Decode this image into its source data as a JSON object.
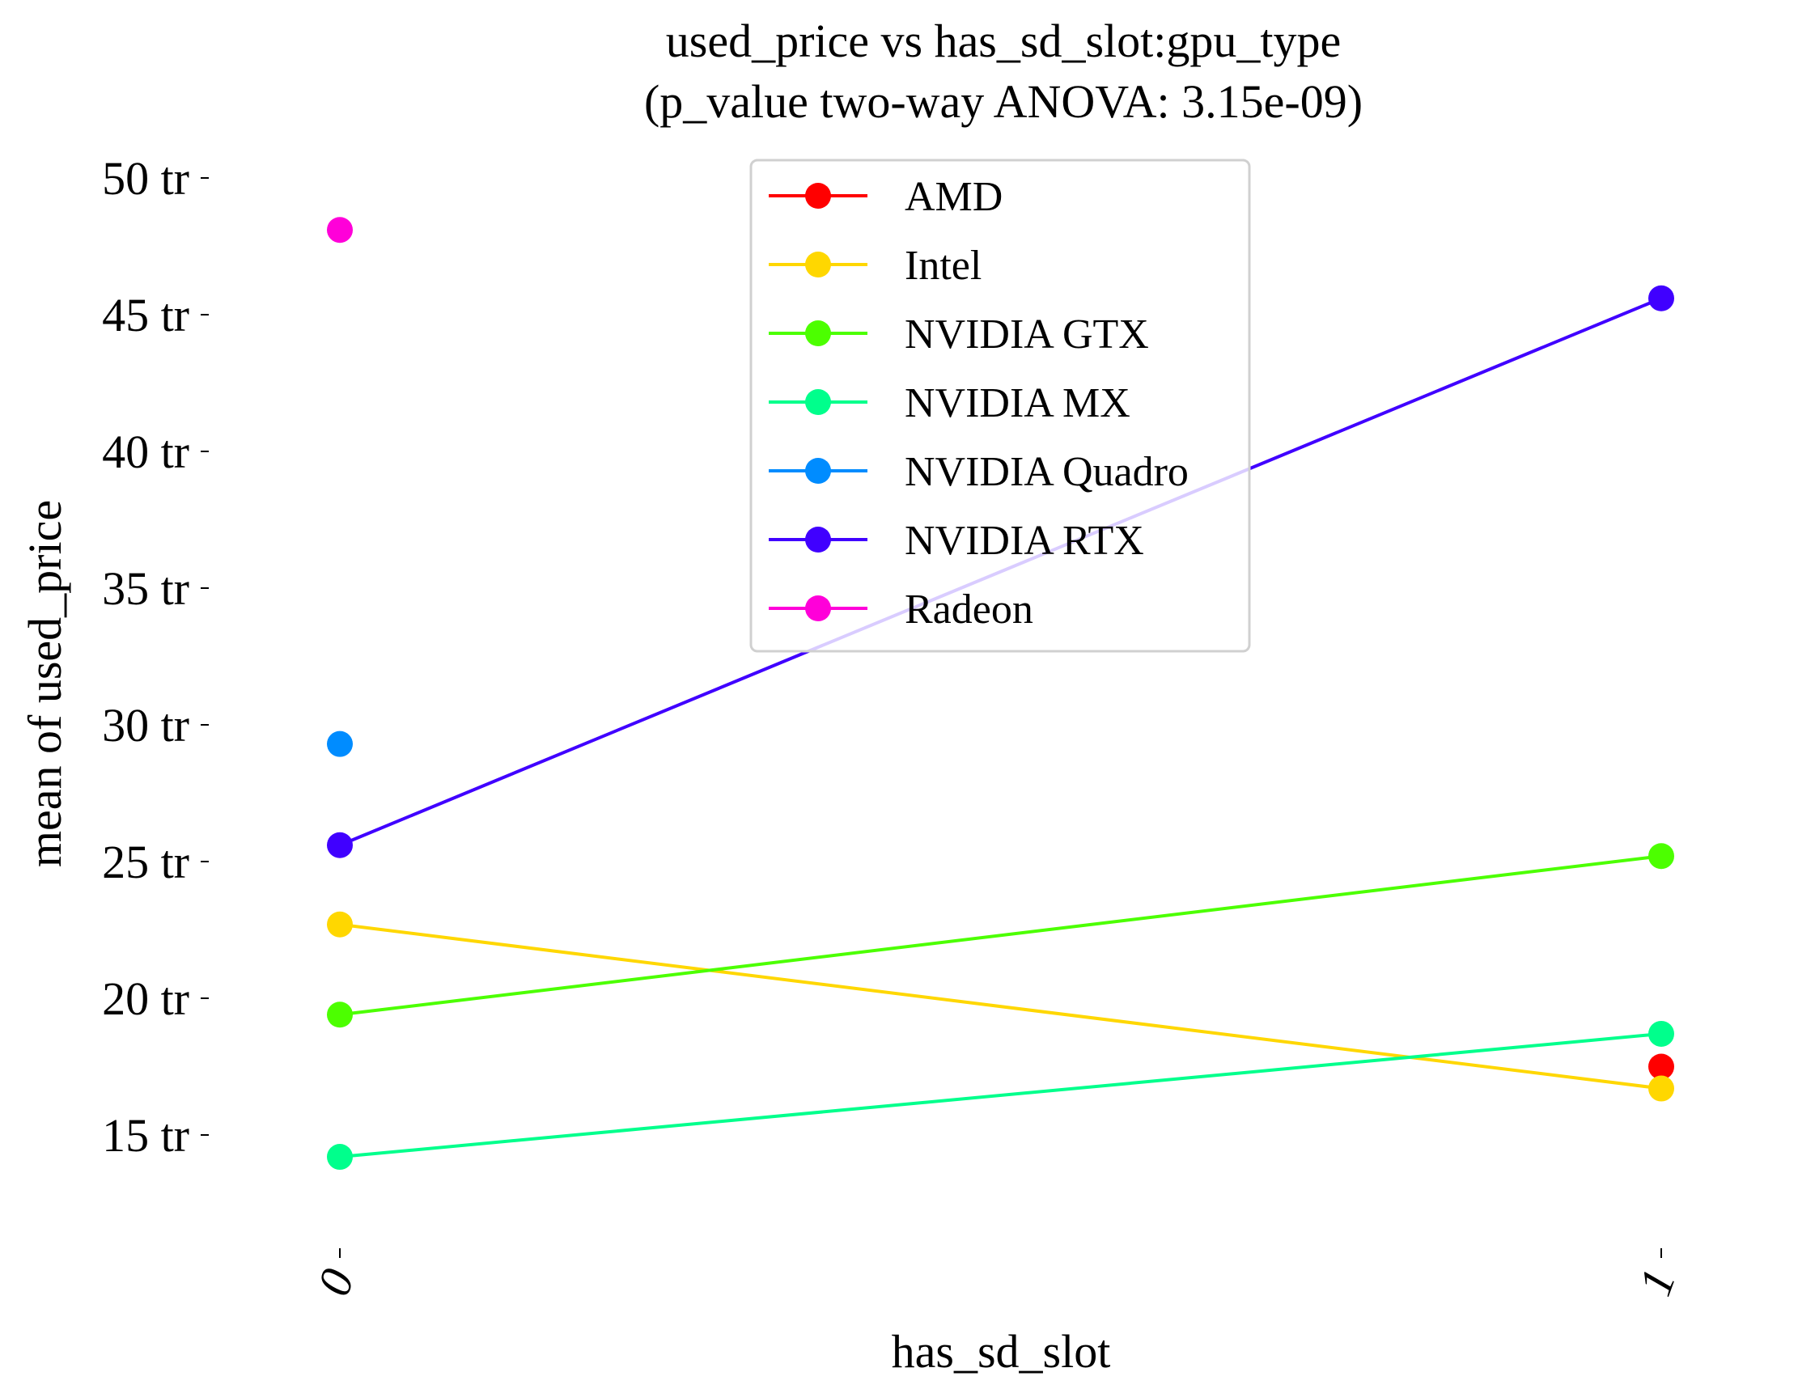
{
  "chart_data": {
    "type": "line",
    "title": "used_price vs has_sd_slot:gpu_type",
    "subtitle": "(p_value two-way ANOVA: 3.15e-09)",
    "xlabel": "has_sd_slot",
    "ylabel": "mean of used_price",
    "categories": [
      "0",
      "1"
    ],
    "y_ticks": [
      {
        "value": 15,
        "label": "15 tr"
      },
      {
        "value": 20,
        "label": "20 tr"
      },
      {
        "value": 25,
        "label": "25 tr"
      },
      {
        "value": 30,
        "label": "30 tr"
      },
      {
        "value": 35,
        "label": "35 tr"
      },
      {
        "value": 40,
        "label": "40 tr"
      },
      {
        "value": 45,
        "label": "45 tr"
      },
      {
        "value": 50,
        "label": "50 tr"
      }
    ],
    "ylim": [
      11.7,
      52
    ],
    "grid": false,
    "legend_position": "top-center",
    "series": [
      {
        "name": "AMD",
        "color": "#ff0000",
        "values": [
          null,
          17.5
        ]
      },
      {
        "name": "Intel",
        "color": "#ffd700",
        "values": [
          22.7,
          16.7
        ]
      },
      {
        "name": "NVIDIA GTX",
        "color": "#4cff00",
        "values": [
          19.4,
          25.2
        ]
      },
      {
        "name": "NVIDIA MX",
        "color": "#00ff8c",
        "values": [
          14.2,
          18.7
        ]
      },
      {
        "name": "NVIDIA Quadro",
        "color": "#008cff",
        "values": [
          29.3,
          null
        ]
      },
      {
        "name": "NVIDIA RTX",
        "color": "#4000ff",
        "values": [
          25.6,
          45.6
        ]
      },
      {
        "name": "Radeon",
        "color": "#ff00d9",
        "values": [
          48.1,
          null
        ]
      }
    ]
  }
}
